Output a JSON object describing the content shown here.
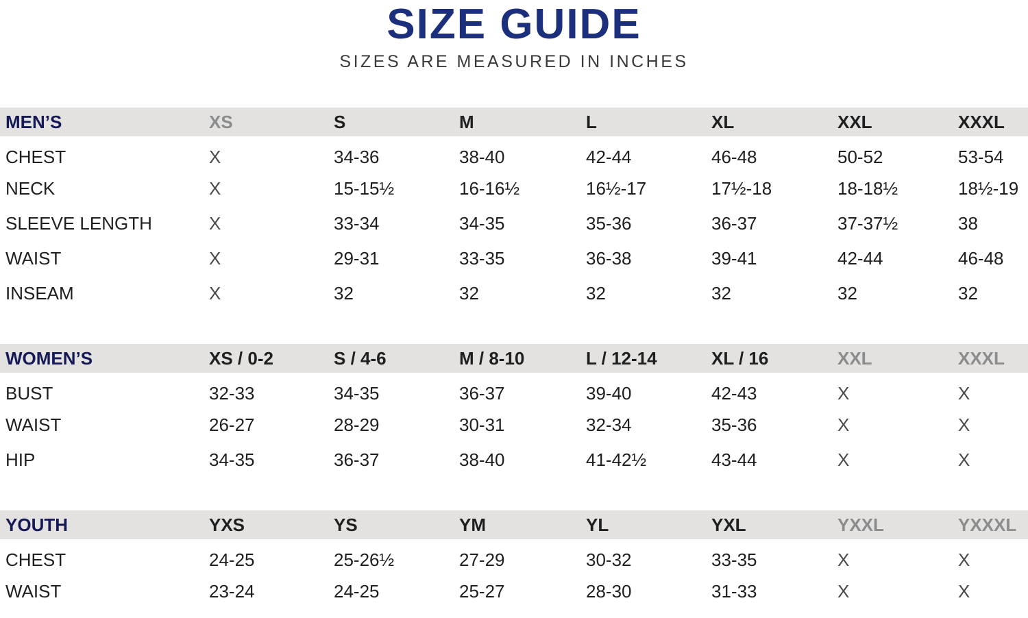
{
  "title": "SIZE GUIDE",
  "subtitle": "SIZES ARE MEASURED IN INCHES",
  "colors": {
    "title_navy": "#1c2f7c",
    "section_navy": "#151a56",
    "band_gray": "#e3e2e0",
    "text_dark": "#1f1f1f",
    "muted_header_gray": "#8c8c8c",
    "muted_value_gray": "#4a4a4a"
  },
  "sections": [
    {
      "name": "MEN’S",
      "columns": [
        {
          "label": "XS",
          "muted": true
        },
        {
          "label": "S",
          "muted": false
        },
        {
          "label": "M",
          "muted": false
        },
        {
          "label": "L",
          "muted": false
        },
        {
          "label": "XL",
          "muted": false
        },
        {
          "label": "XXL",
          "muted": false
        },
        {
          "label": "XXXL",
          "muted": false
        }
      ],
      "rows": [
        {
          "label": "CHEST",
          "values": [
            "X",
            "34-36",
            "38-40",
            "42-44",
            "46-48",
            "50-52",
            "53-54"
          ]
        },
        {
          "label": "NECK",
          "values": [
            "X",
            "15-15½",
            "16-16½",
            "16½-17",
            "17½-18",
            "18-18½",
            "18½-19"
          ]
        },
        {
          "label": "SLEEVE LENGTH",
          "values": [
            "X",
            "33-34",
            "34-35",
            "35-36",
            "36-37",
            "37-37½",
            "38"
          ]
        },
        {
          "label": "WAIST",
          "values": [
            "X",
            "29-31",
            "33-35",
            "36-38",
            "39-41",
            "42-44",
            "46-48"
          ]
        },
        {
          "label": "INSEAM",
          "values": [
            "X",
            "32",
            "32",
            "32",
            "32",
            "32",
            "32"
          ]
        }
      ]
    },
    {
      "name": "WOMEN’S",
      "columns": [
        {
          "label": "XS / 0-2",
          "muted": false
        },
        {
          "label": "S / 4-6",
          "muted": false
        },
        {
          "label": "M / 8-10",
          "muted": false
        },
        {
          "label": "L / 12-14",
          "muted": false
        },
        {
          "label": "XL / 16",
          "muted": false
        },
        {
          "label": "XXL",
          "muted": true
        },
        {
          "label": "XXXL",
          "muted": true
        }
      ],
      "rows": [
        {
          "label": "BUST",
          "values": [
            "32-33",
            "34-35",
            "36-37",
            "39-40",
            "42-43",
            "X",
            "X"
          ]
        },
        {
          "label": "WAIST",
          "values": [
            "26-27",
            "28-29",
            "30-31",
            "32-34",
            "35-36",
            "X",
            "X"
          ]
        },
        {
          "label": "HIP",
          "values": [
            "34-35",
            "36-37",
            "38-40",
            "41-42½",
            "43-44",
            "X",
            "X"
          ]
        }
      ]
    },
    {
      "name": "YOUTH",
      "columns": [
        {
          "label": "YXS",
          "muted": false
        },
        {
          "label": "YS",
          "muted": false
        },
        {
          "label": "YM",
          "muted": false
        },
        {
          "label": "YL",
          "muted": false
        },
        {
          "label": "YXL",
          "muted": false
        },
        {
          "label": "YXXL",
          "muted": true
        },
        {
          "label": "YXXXL",
          "muted": true
        }
      ],
      "rows": [
        {
          "label": "CHEST",
          "values": [
            "24-25",
            "25-26½",
            "27-29",
            "30-32",
            "33-35",
            "X",
            "X"
          ]
        },
        {
          "label": "WAIST",
          "values": [
            "23-24",
            "24-25",
            "25-27",
            "28-30",
            "31-33",
            "X",
            "X"
          ]
        }
      ]
    }
  ]
}
